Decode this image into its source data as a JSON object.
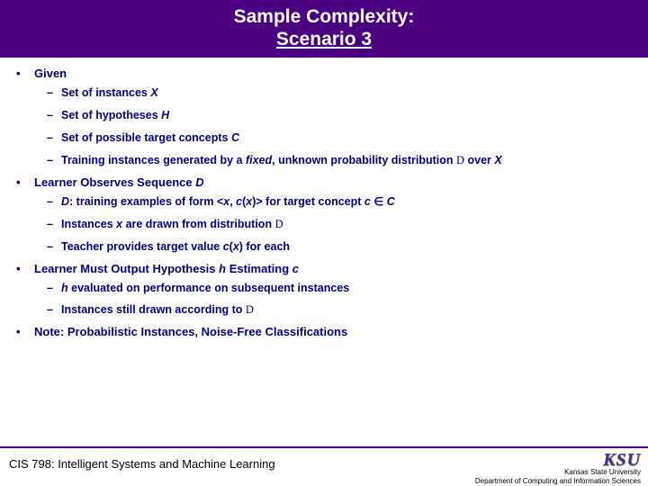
{
  "title": {
    "line1": "Sample Complexity:",
    "line2": "Scenario 3"
  },
  "sections": [
    {
      "heading": "Given",
      "items": [
        {
          "text": "Set of instances ",
          "tail_ital": "X"
        },
        {
          "text": "Set of hypotheses ",
          "tail_ital": "H"
        },
        {
          "text": "Set of possible target concepts ",
          "tail_ital": "C"
        },
        {
          "text_html": "Training instances generated by a <span class='ital'>fixed</span>, unknown probability distribution <span class='serif'>D</span> over <span class='ital'>X</span>"
        }
      ]
    },
    {
      "heading_html": "Learner Observes Sequence <span class='ital'>D</span>",
      "items": [
        {
          "text_html": "<span class='ital'>D</span>: training examples of form &lt;<span class='ital'>x</span>, <span class='ital'>c</span>(<span class='ital'>x</span>)&gt; for target concept <span class='ital'>c</span> <span class='elem-in'>∈</span> <span class='ital'>C</span>"
        },
        {
          "text_html": "Instances <span class='ital'>x</span> are drawn from distribution <span class='serif'>D</span>"
        },
        {
          "text_html": "Teacher provides target value <span class='ital'>c</span>(<span class='ital'>x</span>) for each"
        }
      ]
    },
    {
      "heading_html": "Learner Must Output Hypothesis <span class='ital'>h</span> Estimating <span class='ital'>c</span>",
      "items": [
        {
          "text_html": "<span class='ital'>h</span> evaluated on performance on subsequent instances"
        },
        {
          "text_html": "Instances still drawn according to <span class='serif'>D</span>"
        }
      ]
    },
    {
      "heading": "Note: Probabilistic Instances, Noise-Free Classifications",
      "items": []
    }
  ],
  "footer": {
    "left": "CIS 798: Intelligent Systems and Machine Learning",
    "logo": "KSU",
    "uni1": "Kansas State University",
    "uni2": "Department of Computing and Information Sciences"
  },
  "colors": {
    "title_bg": "#4b0082",
    "title_fg": "#ffffff",
    "body_fg": "#000080",
    "rule": "#4b0082"
  }
}
